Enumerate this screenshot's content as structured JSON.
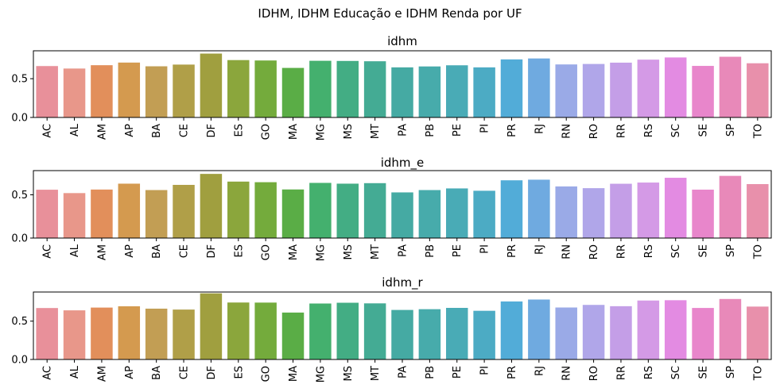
{
  "figure": {
    "suptitle": "IDHM, IDHM Educação e IDHM Renda por UF"
  },
  "chart_data": [
    {
      "type": "bar",
      "title": "idhm",
      "xlabel": "",
      "ylabel": "",
      "ylim": [
        0,
        0.86
      ],
      "yticks": [
        "0.0",
        "0.5"
      ],
      "categories": [
        "AC",
        "AL",
        "AM",
        "AP",
        "BA",
        "CE",
        "DF",
        "ES",
        "GO",
        "MA",
        "MG",
        "MS",
        "MT",
        "PA",
        "PB",
        "PE",
        "PI",
        "PR",
        "RJ",
        "RN",
        "RO",
        "RR",
        "RS",
        "SC",
        "SE",
        "SP",
        "TO"
      ],
      "values": [
        0.663,
        0.631,
        0.674,
        0.708,
        0.66,
        0.682,
        0.824,
        0.74,
        0.735,
        0.639,
        0.731,
        0.729,
        0.725,
        0.646,
        0.658,
        0.673,
        0.646,
        0.749,
        0.761,
        0.684,
        0.69,
        0.707,
        0.746,
        0.774,
        0.665,
        0.783,
        0.699
      ]
    },
    {
      "type": "bar",
      "title": "idhm_e",
      "xlabel": "",
      "ylabel": "",
      "ylim": [
        0,
        0.78
      ],
      "yticks": [
        "0.0",
        "0.5"
      ],
      "categories": [
        "AC",
        "AL",
        "AM",
        "AP",
        "BA",
        "CE",
        "DF",
        "ES",
        "GO",
        "MA",
        "MG",
        "MS",
        "MT",
        "PA",
        "PB",
        "PE",
        "PI",
        "PR",
        "RJ",
        "RN",
        "RO",
        "RR",
        "RS",
        "SC",
        "SE",
        "SP",
        "TO"
      ],
      "values": [
        0.559,
        0.52,
        0.561,
        0.629,
        0.555,
        0.615,
        0.742,
        0.653,
        0.646,
        0.562,
        0.638,
        0.629,
        0.635,
        0.528,
        0.555,
        0.574,
        0.547,
        0.668,
        0.675,
        0.597,
        0.577,
        0.628,
        0.642,
        0.697,
        0.56,
        0.719,
        0.624
      ]
    },
    {
      "type": "bar",
      "title": "idhm_r",
      "xlabel": "",
      "ylabel": "",
      "ylim": [
        0,
        0.88
      ],
      "yticks": [
        "0.0",
        "0.5"
      ],
      "categories": [
        "AC",
        "AL",
        "AM",
        "AP",
        "BA",
        "CE",
        "DF",
        "ES",
        "GO",
        "MA",
        "MG",
        "MS",
        "MT",
        "PA",
        "PB",
        "PE",
        "PI",
        "PR",
        "RJ",
        "RN",
        "RO",
        "RR",
        "RS",
        "SC",
        "SE",
        "SP",
        "TO"
      ],
      "values": [
        0.671,
        0.641,
        0.677,
        0.694,
        0.663,
        0.651,
        0.863,
        0.743,
        0.742,
        0.612,
        0.73,
        0.74,
        0.732,
        0.646,
        0.656,
        0.673,
        0.635,
        0.757,
        0.782,
        0.678,
        0.712,
        0.695,
        0.769,
        0.773,
        0.672,
        0.789,
        0.69
      ]
    }
  ],
  "palette": [
    "#e8909a",
    "#e8978a",
    "#e28f5b",
    "#d49a4f",
    "#c29e54",
    "#b09f48",
    "#a09f3f",
    "#8ba63c",
    "#74ab3c",
    "#5aad46",
    "#44b06e",
    "#43ad84",
    "#44ab94",
    "#45aaa3",
    "#47abab",
    "#49abb6",
    "#4cabc4",
    "#52acd8",
    "#6faae0",
    "#9aaae7",
    "#b0a6e9",
    "#c49ee7",
    "#d49ae6",
    "#e38be2",
    "#e886cb",
    "#e889b9",
    "#e890ab"
  ]
}
